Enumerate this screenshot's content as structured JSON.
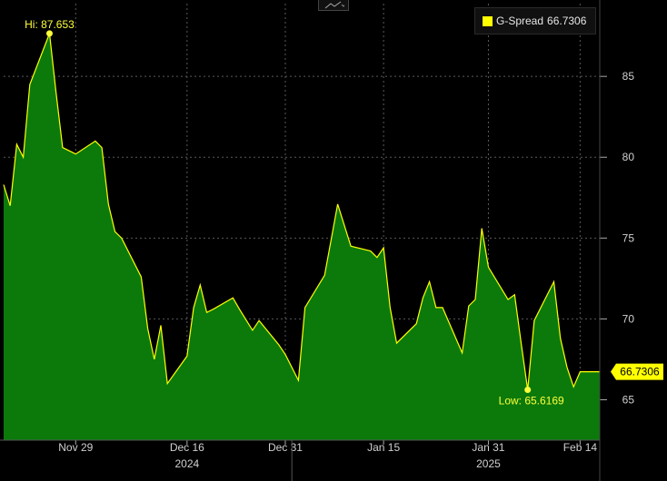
{
  "chart_data": {
    "type": "area",
    "series": [
      {
        "name": "G-Spread",
        "color": "#ffff00",
        "fill_color": "#0b7a0b",
        "points": [
          [
            "2024-11-18",
            78.3
          ],
          [
            "2024-11-19",
            77.0
          ],
          [
            "2024-11-20",
            80.8
          ],
          [
            "2024-11-21",
            80.0
          ],
          [
            "2024-11-22",
            84.5
          ],
          [
            "2024-11-25",
            87.653
          ],
          [
            "2024-11-26",
            84.0
          ],
          [
            "2024-11-27",
            80.6
          ],
          [
            "2024-11-29",
            80.2
          ],
          [
            "2024-12-02",
            81.0
          ],
          [
            "2024-12-03",
            80.6
          ],
          [
            "2024-12-04",
            77.1
          ],
          [
            "2024-12-05",
            75.4
          ],
          [
            "2024-12-06",
            75.0
          ],
          [
            "2024-12-09",
            72.6
          ],
          [
            "2024-12-10",
            69.4
          ],
          [
            "2024-12-11",
            67.5
          ],
          [
            "2024-12-12",
            69.6
          ],
          [
            "2024-12-13",
            66.0
          ],
          [
            "2024-12-16",
            67.7
          ],
          [
            "2024-12-17",
            70.7
          ],
          [
            "2024-12-18",
            72.1
          ],
          [
            "2024-12-19",
            70.4
          ],
          [
            "2024-12-20",
            70.6
          ],
          [
            "2024-12-23",
            71.3
          ],
          [
            "2024-12-24",
            70.6
          ],
          [
            "2024-12-26",
            69.3
          ],
          [
            "2024-12-27",
            69.9
          ],
          [
            "2024-12-30",
            68.4
          ],
          [
            "2024-12-31",
            67.8
          ],
          [
            "2025-01-02",
            66.2
          ],
          [
            "2025-01-03",
            70.7
          ],
          [
            "2025-01-06",
            72.7
          ],
          [
            "2025-01-07",
            74.9
          ],
          [
            "2025-01-08",
            77.1
          ],
          [
            "2025-01-10",
            74.5
          ],
          [
            "2025-01-13",
            74.2
          ],
          [
            "2025-01-14",
            73.8
          ],
          [
            "2025-01-15",
            74.4
          ],
          [
            "2025-01-16",
            70.7
          ],
          [
            "2025-01-17",
            68.5
          ],
          [
            "2025-01-20",
            69.7
          ],
          [
            "2025-01-21",
            71.3
          ],
          [
            "2025-01-22",
            72.3
          ],
          [
            "2025-01-23",
            70.7
          ],
          [
            "2025-01-24",
            70.7
          ],
          [
            "2025-01-27",
            67.9
          ],
          [
            "2025-01-28",
            70.8
          ],
          [
            "2025-01-29",
            71.2
          ],
          [
            "2025-01-30",
            75.6
          ],
          [
            "2025-01-31",
            73.2
          ],
          [
            "2025-02-03",
            71.2
          ],
          [
            "2025-02-04",
            71.5
          ],
          [
            "2025-02-05",
            68.5
          ],
          [
            "2025-02-06",
            65.6169
          ],
          [
            "2025-02-07",
            69.9
          ],
          [
            "2025-02-10",
            72.3
          ],
          [
            "2025-02-11",
            68.8
          ],
          [
            "2025-02-12",
            67.0
          ],
          [
            "2025-02-13",
            65.8
          ],
          [
            "2025-02-14",
            66.7306
          ],
          [
            "2025-02-17",
            66.7306
          ]
        ]
      }
    ],
    "x_ticks": [
      {
        "date": "2024-11-29",
        "label": "Nov 29"
      },
      {
        "date": "2024-12-16",
        "label": "Dec 16"
      },
      {
        "date": "2024-12-31",
        "label": "Dec 31"
      },
      {
        "date": "2025-01-15",
        "label": "Jan 15"
      },
      {
        "date": "2025-01-31",
        "label": "Jan 31"
      },
      {
        "date": "2025-02-14",
        "label": "Feb 14"
      }
    ],
    "year_labels": [
      {
        "date": "2024-12-16",
        "label": "2024"
      },
      {
        "date": "2025-01-31",
        "label": "2025"
      }
    ],
    "year_boundary": "2025-01-01",
    "y_ticks": [
      65,
      70,
      75,
      80,
      85
    ],
    "ylim": [
      62.5,
      89.5
    ],
    "xlim": [
      "2024-11-18",
      "2025-02-17"
    ],
    "grid": true,
    "legend": {
      "position": "top-right",
      "label": "G-Spread",
      "value": "66.7306"
    },
    "annotations": {
      "high": {
        "date": "2024-11-25",
        "value": 87.653,
        "text": "Hi: 87.653"
      },
      "low": {
        "date": "2025-02-06",
        "value": 65.6169,
        "text": "Low: 65.6169"
      },
      "last": {
        "value": 66.7306,
        "text": "66.7306"
      }
    },
    "colors": {
      "background": "#000000",
      "line": "#ffff00",
      "fill": "#0b7a0b",
      "grid": "#5a5a5a",
      "axis_text": "#d0d0d0"
    }
  },
  "toolbar": {
    "chart_type_icon": "line-chart-icon"
  }
}
